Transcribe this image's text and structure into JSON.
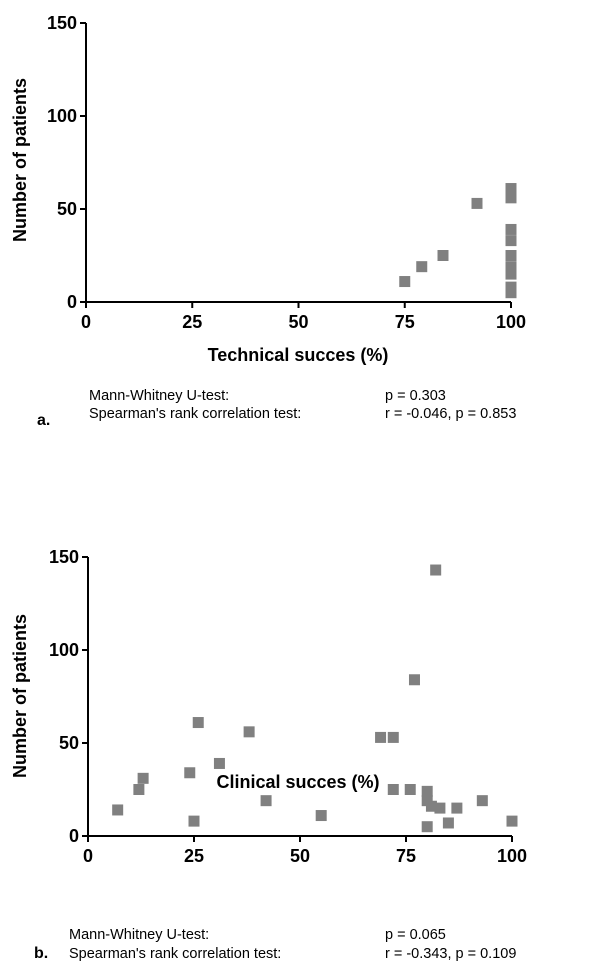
{
  "chart_data": [
    {
      "type": "scatter",
      "panel_label": "a.",
      "xlabel": "Technical succes (%)",
      "ylabel": "Number of patients",
      "xlim": [
        0,
        100
      ],
      "ylim": [
        0,
        150
      ],
      "xticks": [
        0,
        25,
        50,
        75,
        100
      ],
      "yticks": [
        0,
        50,
        100,
        150
      ],
      "marker": "square",
      "marker_color": "#808080",
      "points": [
        {
          "x": 75,
          "y": 11
        },
        {
          "x": 79,
          "y": 19
        },
        {
          "x": 84,
          "y": 25
        },
        {
          "x": 92,
          "y": 53
        },
        {
          "x": 100,
          "y": 61
        },
        {
          "x": 100,
          "y": 56
        },
        {
          "x": 100,
          "y": 39
        },
        {
          "x": 100,
          "y": 33
        },
        {
          "x": 100,
          "y": 25
        },
        {
          "x": 100,
          "y": 19
        },
        {
          "x": 100,
          "y": 15
        },
        {
          "x": 100,
          "y": 8
        },
        {
          "x": 100,
          "y": 5
        }
      ],
      "stats": [
        {
          "test": "Mann-Whitney U-test:",
          "result": "p = 0.303"
        },
        {
          "test": "Spearman's rank correlation test:",
          "result": "r = -0.046, p = 0.853"
        }
      ]
    },
    {
      "type": "scatter",
      "panel_label": "b.",
      "xlabel": "Clinical succes (%)",
      "ylabel": "Number of patients",
      "xlim": [
        0,
        100
      ],
      "ylim": [
        0,
        150
      ],
      "xticks": [
        0,
        25,
        50,
        75,
        100
      ],
      "yticks": [
        0,
        50,
        100,
        150
      ],
      "marker": "square",
      "marker_color": "#808080",
      "points": [
        {
          "x": 7,
          "y": 14
        },
        {
          "x": 12,
          "y": 25
        },
        {
          "x": 13,
          "y": 31
        },
        {
          "x": 24,
          "y": 34
        },
        {
          "x": 25,
          "y": 8
        },
        {
          "x": 26,
          "y": 61
        },
        {
          "x": 31,
          "y": 39
        },
        {
          "x": 38,
          "y": 56
        },
        {
          "x": 42,
          "y": 19
        },
        {
          "x": 55,
          "y": 11
        },
        {
          "x": 69,
          "y": 53
        },
        {
          "x": 72,
          "y": 53
        },
        {
          "x": 72,
          "y": 25
        },
        {
          "x": 76,
          "y": 25
        },
        {
          "x": 77,
          "y": 84
        },
        {
          "x": 80,
          "y": 24
        },
        {
          "x": 80,
          "y": 19
        },
        {
          "x": 80,
          "y": 5
        },
        {
          "x": 81,
          "y": 16
        },
        {
          "x": 82,
          "y": 143
        },
        {
          "x": 83,
          "y": 15
        },
        {
          "x": 85,
          "y": 7
        },
        {
          "x": 87,
          "y": 15
        },
        {
          "x": 93,
          "y": 19
        },
        {
          "x": 100,
          "y": 8
        }
      ],
      "stats": [
        {
          "test": "Mann-Whitney U-test:",
          "result": "p = 0.065"
        },
        {
          "test": "Spearman's rank correlation test:",
          "result": "r = -0.343, p = 0.109"
        }
      ]
    }
  ]
}
